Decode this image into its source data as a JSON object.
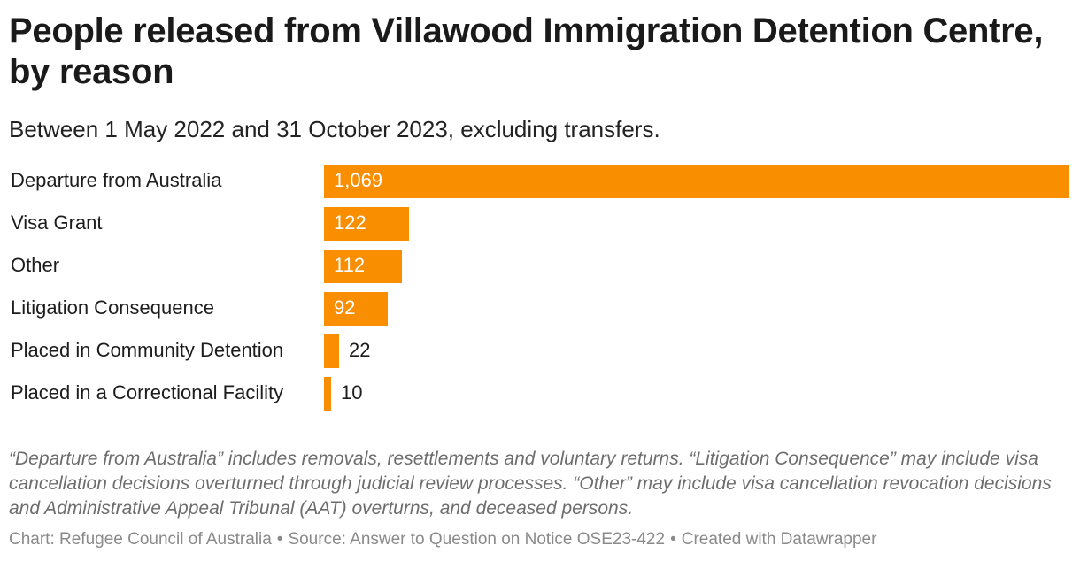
{
  "header": {
    "title": "People released from Villawood Immigration Detention Centre, by reason",
    "subtitle": "Between 1 May 2022 and 31 October 2023, excluding transfers."
  },
  "chart_data": {
    "type": "bar",
    "orientation": "horizontal",
    "title": "People released from Villawood Immigration Detention Centre, by reason",
    "subtitle": "Between 1 May 2022 and 31 October 2023, excluding transfers.",
    "categories": [
      "Departure from Australia",
      "Visa Grant",
      "Other",
      "Litigation Consequence",
      "Placed in Community Detention",
      "Placed in a Correctional Facility"
    ],
    "values": [
      1069,
      122,
      112,
      92,
      22,
      10
    ],
    "value_labels": [
      "1,069",
      "122",
      "112",
      "92",
      "22",
      "10"
    ],
    "xlim": [
      0,
      1069
    ],
    "xlabel": "",
    "ylabel": "",
    "bar_color": "#f98f00",
    "grid": false
  },
  "footer": {
    "notes": "“Departure from Australia” includes removals, resettlements and voluntary returns. “Litigation Consequence” may include visa cancellation decisions overturned through judicial review processes. “Other” may include visa cancellation revocation decisions and Administrative Appeal Tribunal (AAT) overturns, and deceased persons.",
    "credit_chart": "Chart: Refugee Council of Australia",
    "credit_source": "Source: Answer to Question on Notice OSE23-422",
    "credit_tool": "Created with Datawrapper",
    "separator": "•"
  }
}
